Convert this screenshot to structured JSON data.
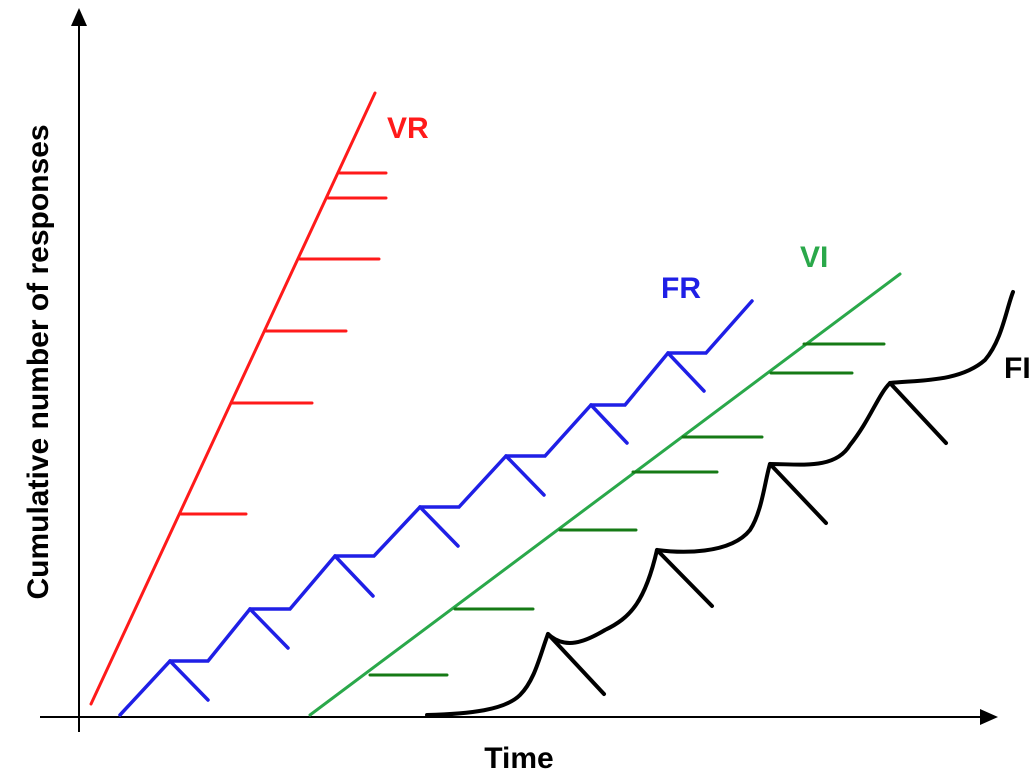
{
  "axes": {
    "x_label": "Time",
    "y_label": "Cumulative number of responses"
  },
  "curves": [
    {
      "id": "vr",
      "label": "VR",
      "color": "#ff1a1a"
    },
    {
      "id": "fr",
      "label": "FR",
      "color": "#1f1fe6"
    },
    {
      "id": "vi",
      "label": "VI",
      "color": "#2aa84a"
    },
    {
      "id": "fi",
      "label": "FI",
      "color": "#000000"
    }
  ],
  "colors": {
    "vi_hatch": "#157a15",
    "axis": "#000000",
    "background": "#ffffff"
  }
}
